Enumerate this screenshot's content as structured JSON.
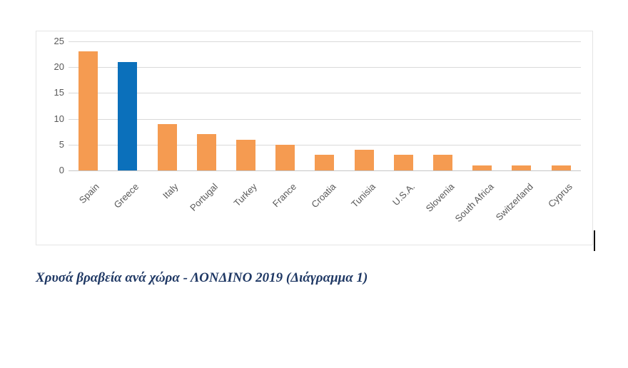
{
  "chart_data": {
    "type": "bar",
    "title": "",
    "categories": [
      "Spain",
      "Greece",
      "Italy",
      "Portugal",
      "Turkey",
      "France",
      "Croatia",
      "Tunisia",
      "U.S.A.",
      "Slovenia",
      "South Africa",
      "Switzerland",
      "Cyprus"
    ],
    "values": [
      23,
      21,
      9,
      7,
      6,
      5,
      3,
      4,
      3,
      3,
      1,
      1,
      1
    ],
    "highlight_index": 1,
    "highlight_category": "Greece",
    "colors": {
      "bar": "#F59B51",
      "highlight": "#0B70BB",
      "grid": "#D9D9D9",
      "axis_line": "#C6C6C6",
      "tick_text": "#595959"
    },
    "xlabel": "",
    "ylabel": "",
    "ylim": [
      0,
      25
    ],
    "ytick_step": 5,
    "yticks": [
      0,
      5,
      10,
      15,
      20,
      25
    ],
    "grid": true,
    "legend": false
  },
  "caption": {
    "text": "Χρυσά βραβεία ανά χώρα - ΛΟΝΔΙΝΟ 2019 (Διάγραμμα 1)",
    "color": "#1F3864"
  }
}
